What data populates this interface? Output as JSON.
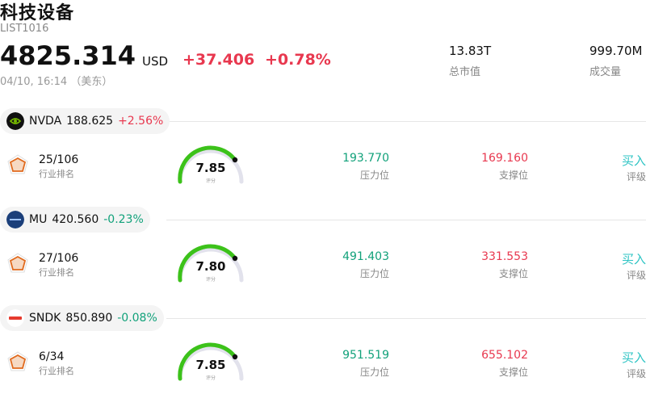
{
  "header": {
    "title": "科技设备",
    "code": "LIST1016",
    "price": "4825.314",
    "currency": "USD",
    "change": "+37.406",
    "change_pct": "+0.78%",
    "time": "04/10, 16:14 （美东）",
    "market_cap_value": "13.83T",
    "market_cap_label": "总市值",
    "volume_value": "999.70M",
    "volume_label": "成交量"
  },
  "stocks": [
    {
      "ticker": "NVDA",
      "price": "188.625",
      "pct": "+2.56%",
      "direction": "up",
      "rank": "25/106",
      "rank_label": "行业排名",
      "score": "7.85",
      "score_label": "评分",
      "resistance": "193.770",
      "resistance_label": "压力位",
      "support": "169.160",
      "support_label": "支撑位",
      "rating": "买入",
      "rating_label": "评级",
      "logo_icon": "nvidia-logo-icon"
    },
    {
      "ticker": "MU",
      "price": "420.560",
      "pct": "-0.23%",
      "direction": "down",
      "rank": "27/106",
      "rank_label": "行业排名",
      "score": "7.80",
      "score_label": "评分",
      "resistance": "491.403",
      "resistance_label": "压力位",
      "support": "331.553",
      "support_label": "支撑位",
      "rating": "买入",
      "rating_label": "评级",
      "logo_icon": "micron-logo-icon"
    },
    {
      "ticker": "SNDK",
      "price": "850.890",
      "pct": "-0.08%",
      "direction": "down",
      "rank": "6/34",
      "rank_label": "行业排名",
      "score": "7.85",
      "score_label": "评分",
      "resistance": "951.519",
      "resistance_label": "压力位",
      "support": "655.102",
      "support_label": "支撑位",
      "rating": "买入",
      "rating_label": "评级",
      "logo_icon": "sandisk-logo-icon"
    }
  ],
  "colors": {
    "up": "#e8384f",
    "down": "#11a17a",
    "gauge": "#3cc21a",
    "rating": "#2ec4c4",
    "radar": "#e06a1e"
  }
}
